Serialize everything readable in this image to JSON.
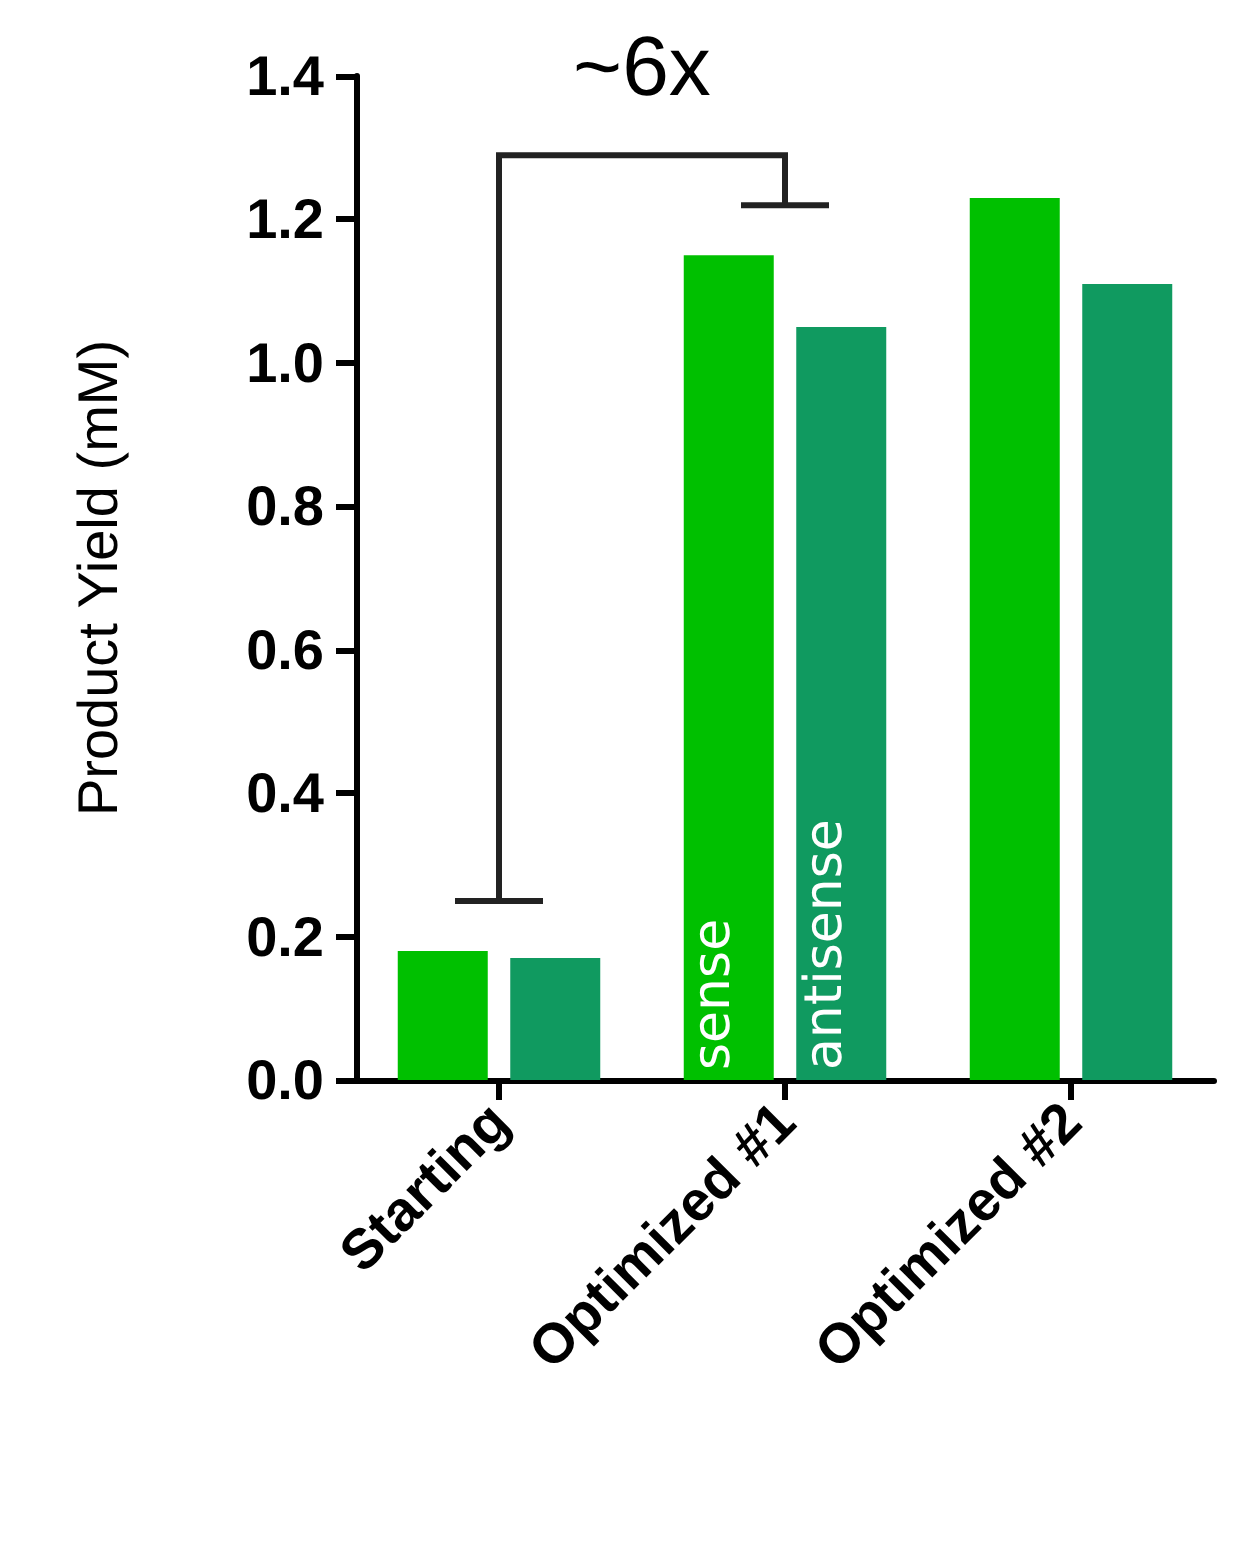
{
  "chart_data": {
    "type": "bar",
    "ylabel": "Product Yield (mM)",
    "categories": [
      "Starting",
      "Optimized #1",
      "Optimized #2"
    ],
    "series": [
      {
        "name": "sense",
        "color": "#00c000",
        "values": [
          0.18,
          1.15,
          1.23
        ]
      },
      {
        "name": "antisense",
        "color": "#109a60",
        "values": [
          0.17,
          1.05,
          1.11
        ]
      }
    ],
    "ylim": [
      0,
      1.4
    ],
    "yticks": [
      {
        "value": 0,
        "label": "0.0"
      },
      {
        "value": 0.2,
        "label": "0.2"
      },
      {
        "value": 0.4,
        "label": "0.4"
      },
      {
        "value": 0.6,
        "label": "0.6"
      },
      {
        "value": 0.8,
        "label": "0.8"
      },
      {
        "value": 1,
        "label": "1.0"
      },
      {
        "value": 1.2,
        "label": "1.2"
      },
      {
        "value": 1.4,
        "label": "1.4"
      }
    ],
    "grid": false,
    "legend": false,
    "annotations": [
      "~6x"
    ]
  }
}
